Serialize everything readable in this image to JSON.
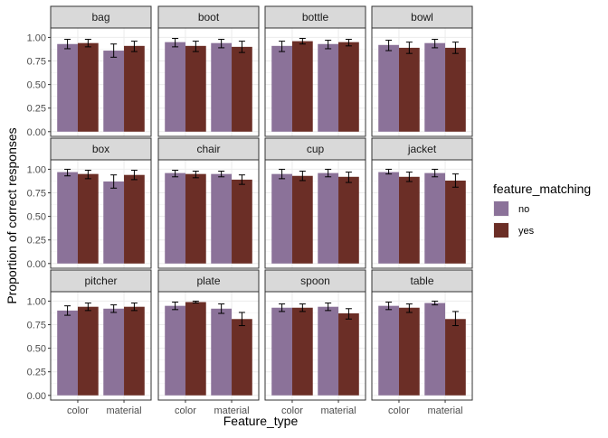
{
  "chart_data": {
    "type": "bar",
    "xlabel": "Feature_type",
    "ylabel": "Proportion of correct responses",
    "ylim": [
      -0.05,
      1.1
    ],
    "yticks": [
      "0.00",
      "0.25",
      "0.50",
      "0.75",
      "1.00"
    ],
    "ytick_values": [
      0,
      0.25,
      0.5,
      0.75,
      1.0
    ],
    "categories": [
      "color",
      "material"
    ],
    "legend": {
      "title": "feature_matching",
      "placement": "right",
      "entries": [
        {
          "label": "no",
          "color": "#8B7299"
        },
        {
          "label": "yes",
          "color": "#6B2E26"
        }
      ]
    },
    "grid": true,
    "panels": [
      {
        "title": "bag",
        "bars": [
          {
            "category": "color",
            "group": "no",
            "value": 0.93,
            "lo": 0.88,
            "hi": 0.98
          },
          {
            "category": "color",
            "group": "yes",
            "value": 0.94,
            "lo": 0.9,
            "hi": 0.98
          },
          {
            "category": "material",
            "group": "no",
            "value": 0.86,
            "lo": 0.79,
            "hi": 0.93
          },
          {
            "category": "material",
            "group": "yes",
            "value": 0.91,
            "lo": 0.85,
            "hi": 0.96
          }
        ]
      },
      {
        "title": "boot",
        "bars": [
          {
            "category": "color",
            "group": "no",
            "value": 0.95,
            "lo": 0.9,
            "hi": 0.99
          },
          {
            "category": "color",
            "group": "yes",
            "value": 0.91,
            "lo": 0.85,
            "hi": 0.96
          },
          {
            "category": "material",
            "group": "no",
            "value": 0.94,
            "lo": 0.89,
            "hi": 0.98
          },
          {
            "category": "material",
            "group": "yes",
            "value": 0.9,
            "lo": 0.84,
            "hi": 0.96
          }
        ]
      },
      {
        "title": "bottle",
        "bars": [
          {
            "category": "color",
            "group": "no",
            "value": 0.91,
            "lo": 0.85,
            "hi": 0.96
          },
          {
            "category": "color",
            "group": "yes",
            "value": 0.96,
            "lo": 0.93,
            "hi": 0.99
          },
          {
            "category": "material",
            "group": "no",
            "value": 0.93,
            "lo": 0.88,
            "hi": 0.97
          },
          {
            "category": "material",
            "group": "yes",
            "value": 0.95,
            "lo": 0.91,
            "hi": 0.98
          }
        ]
      },
      {
        "title": "bowl",
        "bars": [
          {
            "category": "color",
            "group": "no",
            "value": 0.92,
            "lo": 0.86,
            "hi": 0.97
          },
          {
            "category": "color",
            "group": "yes",
            "value": 0.89,
            "lo": 0.83,
            "hi": 0.95
          },
          {
            "category": "material",
            "group": "no",
            "value": 0.94,
            "lo": 0.89,
            "hi": 0.98
          },
          {
            "category": "material",
            "group": "yes",
            "value": 0.89,
            "lo": 0.83,
            "hi": 0.95
          }
        ]
      },
      {
        "title": "box",
        "bars": [
          {
            "category": "color",
            "group": "no",
            "value": 0.97,
            "lo": 0.93,
            "hi": 1.0
          },
          {
            "category": "color",
            "group": "yes",
            "value": 0.95,
            "lo": 0.9,
            "hi": 0.99
          },
          {
            "category": "material",
            "group": "no",
            "value": 0.87,
            "lo": 0.8,
            "hi": 0.94
          },
          {
            "category": "material",
            "group": "yes",
            "value": 0.94,
            "lo": 0.89,
            "hi": 0.99
          }
        ]
      },
      {
        "title": "chair",
        "bars": [
          {
            "category": "color",
            "group": "no",
            "value": 0.96,
            "lo": 0.92,
            "hi": 0.99
          },
          {
            "category": "color",
            "group": "yes",
            "value": 0.95,
            "lo": 0.91,
            "hi": 0.98
          },
          {
            "category": "material",
            "group": "no",
            "value": 0.95,
            "lo": 0.92,
            "hi": 0.98
          },
          {
            "category": "material",
            "group": "yes",
            "value": 0.89,
            "lo": 0.84,
            "hi": 0.94
          }
        ]
      },
      {
        "title": "cup",
        "bars": [
          {
            "category": "color",
            "group": "no",
            "value": 0.95,
            "lo": 0.9,
            "hi": 1.0
          },
          {
            "category": "color",
            "group": "yes",
            "value": 0.93,
            "lo": 0.88,
            "hi": 0.98
          },
          {
            "category": "material",
            "group": "no",
            "value": 0.96,
            "lo": 0.92,
            "hi": 1.0
          },
          {
            "category": "material",
            "group": "yes",
            "value": 0.92,
            "lo": 0.86,
            "hi": 0.97
          }
        ]
      },
      {
        "title": "jacket",
        "bars": [
          {
            "category": "color",
            "group": "no",
            "value": 0.97,
            "lo": 0.95,
            "hi": 1.0
          },
          {
            "category": "color",
            "group": "yes",
            "value": 0.92,
            "lo": 0.87,
            "hi": 0.97
          },
          {
            "category": "material",
            "group": "no",
            "value": 0.96,
            "lo": 0.92,
            "hi": 1.0
          },
          {
            "category": "material",
            "group": "yes",
            "value": 0.88,
            "lo": 0.81,
            "hi": 0.95
          }
        ]
      },
      {
        "title": "pitcher",
        "bars": [
          {
            "category": "color",
            "group": "no",
            "value": 0.9,
            "lo": 0.85,
            "hi": 0.95
          },
          {
            "category": "color",
            "group": "yes",
            "value": 0.94,
            "lo": 0.9,
            "hi": 0.98
          },
          {
            "category": "material",
            "group": "no",
            "value": 0.92,
            "lo": 0.88,
            "hi": 0.96
          },
          {
            "category": "material",
            "group": "yes",
            "value": 0.94,
            "lo": 0.9,
            "hi": 0.98
          }
        ]
      },
      {
        "title": "plate",
        "bars": [
          {
            "category": "color",
            "group": "no",
            "value": 0.95,
            "lo": 0.91,
            "hi": 0.99
          },
          {
            "category": "color",
            "group": "yes",
            "value": 0.99,
            "lo": 0.98,
            "hi": 1.0
          },
          {
            "category": "material",
            "group": "no",
            "value": 0.92,
            "lo": 0.87,
            "hi": 0.97
          },
          {
            "category": "material",
            "group": "yes",
            "value": 0.81,
            "lo": 0.74,
            "hi": 0.88
          }
        ]
      },
      {
        "title": "spoon",
        "bars": [
          {
            "category": "color",
            "group": "no",
            "value": 0.93,
            "lo": 0.89,
            "hi": 0.97
          },
          {
            "category": "color",
            "group": "yes",
            "value": 0.93,
            "lo": 0.89,
            "hi": 0.97
          },
          {
            "category": "material",
            "group": "no",
            "value": 0.94,
            "lo": 0.9,
            "hi": 0.98
          },
          {
            "category": "material",
            "group": "yes",
            "value": 0.87,
            "lo": 0.81,
            "hi": 0.92
          }
        ]
      },
      {
        "title": "table",
        "bars": [
          {
            "category": "color",
            "group": "no",
            "value": 0.95,
            "lo": 0.91,
            "hi": 0.99
          },
          {
            "category": "color",
            "group": "yes",
            "value": 0.93,
            "lo": 0.88,
            "hi": 0.97
          },
          {
            "category": "material",
            "group": "no",
            "value": 0.98,
            "lo": 0.96,
            "hi": 1.0
          },
          {
            "category": "material",
            "group": "yes",
            "value": 0.81,
            "lo": 0.74,
            "hi": 0.89
          }
        ]
      }
    ]
  }
}
